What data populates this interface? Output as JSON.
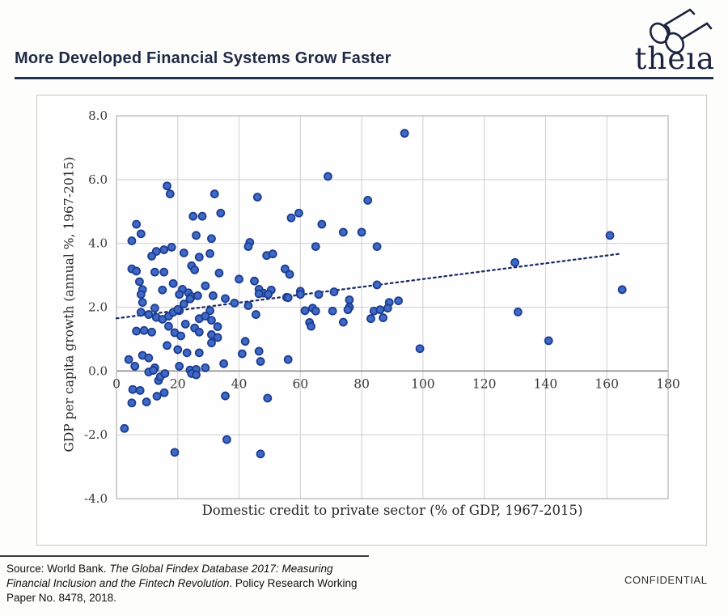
{
  "header": {
    "title": "More Developed Financial Systems Grow Faster",
    "logo_text": "theıa"
  },
  "footer": {
    "source_segments": [
      {
        "text": "Source: World Bank. ",
        "italic": false
      },
      {
        "text": "The Global Findex Database 2017: Measuring Financial Inclusion and the Fintech Revolution",
        "italic": true
      },
      {
        "text": ". Policy Research Working Paper No. 8478, 2018.",
        "italic": false
      }
    ],
    "confidential_label": "CONFIDENTIAL"
  },
  "chart_data": {
    "type": "scatter",
    "title": "",
    "xlabel": "Domestic credit to private sector (% of GDP, 1967-2015)",
    "ylabel": "GDP per capita growth (annual %, 1967-2015)",
    "xlim": [
      0,
      180
    ],
    "ylim": [
      -4,
      8
    ],
    "x_ticks": [
      0,
      20,
      40,
      60,
      80,
      100,
      120,
      140,
      160,
      180
    ],
    "y_ticks": [
      {
        "v": 8,
        "label": "8.0"
      },
      {
        "v": 6,
        "label": "6.0"
      },
      {
        "v": 4,
        "label": "4.0"
      },
      {
        "v": 2,
        "label": "2.0"
      },
      {
        "v": 0,
        "label": "0.0"
      },
      {
        "v": -2,
        "label": "-2.0"
      },
      {
        "v": -4,
        "label": "-4.0"
      }
    ],
    "grid": true,
    "legend": "none",
    "trendline": {
      "style": "dotted",
      "x1": 0,
      "y1": 1.65,
      "x2": 164,
      "y2": 3.67
    },
    "colors": {
      "point_fill": "#3e69c6",
      "point_stroke": "#1d3c8f",
      "trend": "#1d2d66",
      "grid": "#cfcfcf",
      "zero_line": "#8f8f8f",
      "plot_border": "#b3b3b3"
    },
    "points": [
      [
        94,
        7.45
      ],
      [
        69,
        6.1
      ],
      [
        16.5,
        5.8
      ],
      [
        17.5,
        5.55
      ],
      [
        32,
        5.55
      ],
      [
        46,
        5.45
      ],
      [
        82,
        5.35
      ],
      [
        25,
        4.85
      ],
      [
        28,
        4.85
      ],
      [
        34,
        4.95
      ],
      [
        57,
        4.8
      ],
      [
        59.5,
        4.95
      ],
      [
        6.5,
        4.6
      ],
      [
        67,
        4.6
      ],
      [
        8,
        4.3
      ],
      [
        5,
        4.08
      ],
      [
        26,
        4.25
      ],
      [
        31,
        4.15
      ],
      [
        43.5,
        4.03
      ],
      [
        74,
        4.35
      ],
      [
        80,
        4.35
      ],
      [
        161,
        4.25
      ],
      [
        13,
        3.75
      ],
      [
        15.5,
        3.8
      ],
      [
        18,
        3.88
      ],
      [
        22,
        3.7
      ],
      [
        27,
        3.57
      ],
      [
        30.5,
        3.68
      ],
      [
        43,
        3.9
      ],
      [
        49,
        3.62
      ],
      [
        51,
        3.67
      ],
      [
        65,
        3.9
      ],
      [
        85,
        3.9
      ],
      [
        11.5,
        3.6
      ],
      [
        130,
        3.4
      ],
      [
        5,
        3.2
      ],
      [
        6.5,
        3.13
      ],
      [
        12.5,
        3.1
      ],
      [
        15.5,
        3.1
      ],
      [
        24.5,
        3.3
      ],
      [
        25.5,
        3.17
      ],
      [
        33.5,
        3.07
      ],
      [
        55,
        3.2
      ],
      [
        56.5,
        3.03
      ],
      [
        40,
        2.88
      ],
      [
        7.5,
        2.8
      ],
      [
        8.5,
        2.55
      ],
      [
        15,
        2.54
      ],
      [
        18.5,
        2.74
      ],
      [
        21.5,
        2.56
      ],
      [
        23.5,
        2.45
      ],
      [
        24.5,
        2.33
      ],
      [
        29,
        2.67
      ],
      [
        45,
        2.82
      ],
      [
        46.5,
        2.56
      ],
      [
        48,
        2.44
      ],
      [
        50.5,
        2.54
      ],
      [
        55.5,
        2.31
      ],
      [
        60,
        2.5
      ],
      [
        66,
        2.4
      ],
      [
        71,
        2.48
      ],
      [
        85,
        2.7
      ],
      [
        165,
        2.55
      ],
      [
        8,
        2.4
      ],
      [
        20.5,
        2.4
      ],
      [
        24,
        2.26
      ],
      [
        26.5,
        2.36
      ],
      [
        31.5,
        2.36
      ],
      [
        35.5,
        2.27
      ],
      [
        38.5,
        2.13
      ],
      [
        43,
        2.05
      ],
      [
        46.5,
        2.42
      ],
      [
        49.5,
        2.4
      ],
      [
        56,
        2.3
      ],
      [
        60,
        2.4
      ],
      [
        89,
        2.15
      ],
      [
        92,
        2.2
      ],
      [
        76,
        2.23
      ],
      [
        76,
        2.0
      ],
      [
        22,
        2.1
      ],
      [
        12.5,
        1.97
      ],
      [
        8.5,
        2.15
      ],
      [
        45.5,
        1.77
      ],
      [
        20.5,
        1.89
      ],
      [
        30.5,
        1.89
      ],
      [
        61.5,
        1.89
      ],
      [
        64,
        1.97
      ],
      [
        8,
        1.84
      ],
      [
        10.5,
        1.77
      ],
      [
        13,
        1.68
      ],
      [
        15,
        1.62
      ],
      [
        17,
        1.72
      ],
      [
        18.5,
        1.84
      ],
      [
        20,
        1.93
      ],
      [
        27,
        1.64
      ],
      [
        29,
        1.72
      ],
      [
        31,
        1.59
      ],
      [
        33,
        1.39
      ],
      [
        63,
        1.52
      ],
      [
        131,
        1.85
      ],
      [
        63.5,
        1.4
      ],
      [
        65,
        1.88
      ],
      [
        70.5,
        1.88
      ],
      [
        74,
        1.53
      ],
      [
        75.5,
        1.92
      ],
      [
        83,
        1.64
      ],
      [
        84,
        1.88
      ],
      [
        86,
        1.92
      ],
      [
        87,
        1.67
      ],
      [
        88.5,
        1.97
      ],
      [
        6.5,
        1.25
      ],
      [
        9,
        1.27
      ],
      [
        11.5,
        1.22
      ],
      [
        17,
        1.4
      ],
      [
        19,
        1.2
      ],
      [
        21,
        1.1
      ],
      [
        22.5,
        1.47
      ],
      [
        25.5,
        1.35
      ],
      [
        27,
        1.22
      ],
      [
        31,
        1.14
      ],
      [
        33,
        1.05
      ],
      [
        16.5,
        0.8
      ],
      [
        20,
        0.67
      ],
      [
        23,
        0.57
      ],
      [
        27,
        0.57
      ],
      [
        31,
        0.88
      ],
      [
        41,
        0.54
      ],
      [
        42,
        0.93
      ],
      [
        46.5,
        0.62
      ],
      [
        99,
        0.7
      ],
      [
        141,
        0.95
      ],
      [
        4,
        0.36
      ],
      [
        6,
        0.15
      ],
      [
        8.5,
        0.49
      ],
      [
        10.5,
        0.41
      ],
      [
        12.5,
        0.1
      ],
      [
        20.5,
        0.15
      ],
      [
        24,
        0.03
      ],
      [
        26,
        0.05
      ],
      [
        29,
        0.1
      ],
      [
        35,
        0.23
      ],
      [
        47,
        0.3
      ],
      [
        56,
        0.36
      ],
      [
        10.5,
        -0.03
      ],
      [
        12,
        0.02
      ],
      [
        13.7,
        -0.3
      ],
      [
        14.3,
        -0.18
      ],
      [
        15.8,
        -0.08
      ],
      [
        24.5,
        -0.08
      ],
      [
        26,
        -0.12
      ],
      [
        5.3,
        -0.58
      ],
      [
        7.7,
        -0.61
      ],
      [
        5,
        -1.0
      ],
      [
        9.8,
        -0.97
      ],
      [
        13.2,
        -0.79
      ],
      [
        15.6,
        -0.68
      ],
      [
        35.5,
        -0.78
      ],
      [
        49.3,
        -0.85
      ],
      [
        2.6,
        -1.8
      ],
      [
        19,
        -2.55
      ],
      [
        36,
        -2.15
      ],
      [
        47,
        -2.6
      ]
    ]
  }
}
